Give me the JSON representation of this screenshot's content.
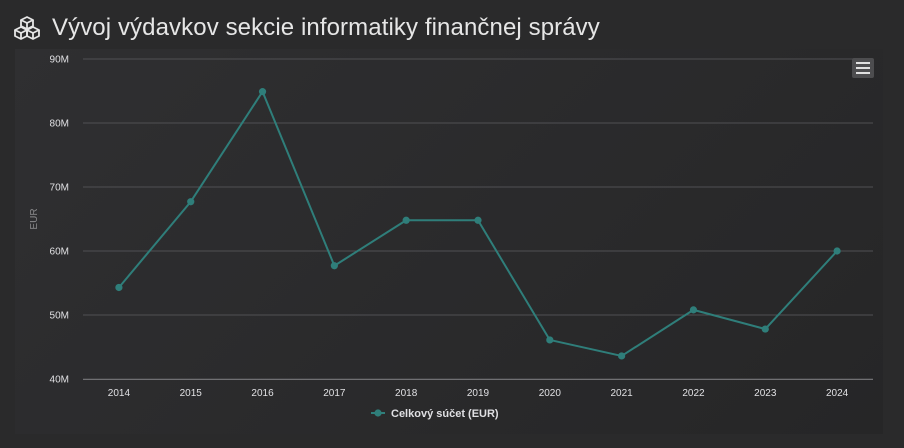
{
  "header": {
    "title": "Vývoj výdavkov sekcie informatiky finančnej správy",
    "icon": "cubes-icon"
  },
  "toolbar": {
    "menu_icon": "hamburger-menu-icon"
  },
  "colors": {
    "series": "#2f7e7a",
    "background": "#2a2a2b",
    "grid": "#505053",
    "text": "#e0e0e3",
    "axis_label": "#8a8a8c"
  },
  "chart_data": {
    "type": "line",
    "title": "Vývoj výdavkov sekcie informatiky finančnej správy",
    "xlabel": "",
    "ylabel": "EUR",
    "categories": [
      "2014",
      "2015",
      "2016",
      "2017",
      "2018",
      "2019",
      "2020",
      "2021",
      "2022",
      "2023",
      "2024"
    ],
    "series": [
      {
        "name": "Celkový súčet (EUR)",
        "values": [
          54.3,
          67.7,
          84.9,
          57.7,
          64.8,
          64.8,
          46.1,
          43.6,
          50.8,
          47.8,
          60.0
        ]
      }
    ],
    "ylim": [
      40,
      90
    ],
    "yticks": [
      {
        "value": 40,
        "label": "40M"
      },
      {
        "value": 50,
        "label": "50M"
      },
      {
        "value": 60,
        "label": "60M"
      },
      {
        "value": 70,
        "label": "70M"
      },
      {
        "value": 80,
        "label": "80M"
      },
      {
        "value": 90,
        "label": "90M"
      }
    ],
    "grid": true,
    "legend": "bottom-center"
  }
}
